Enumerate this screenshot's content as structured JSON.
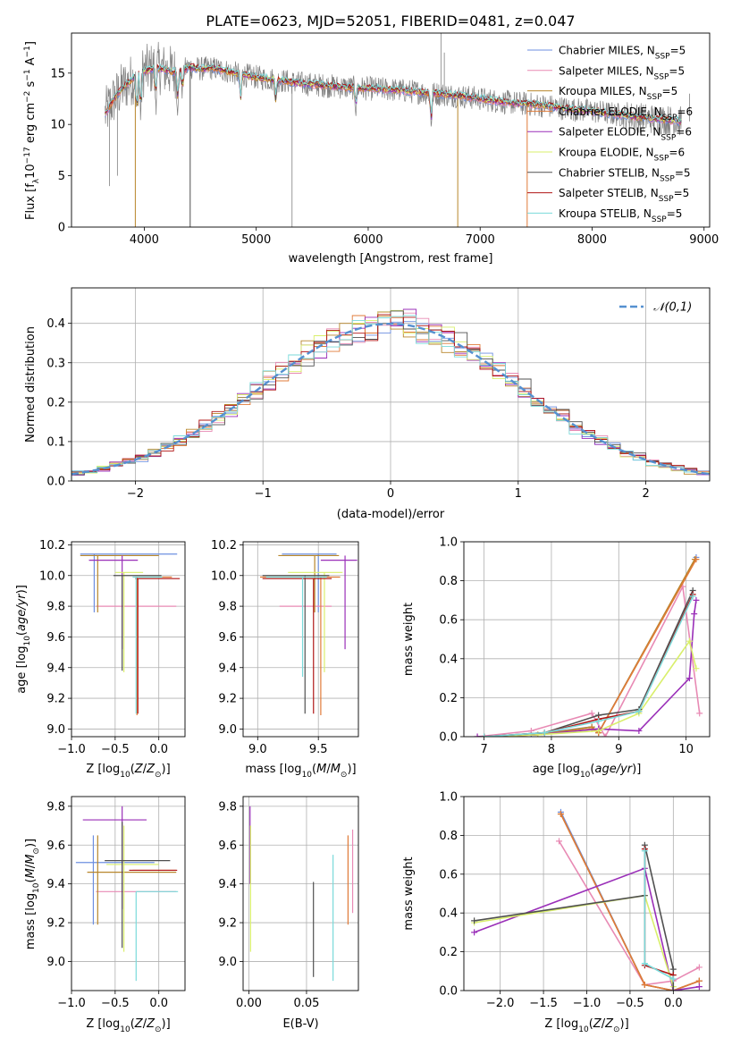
{
  "figure_title": "PLATE=0623, MJD=52051, FIBERID=0481, z=0.047",
  "colors": {
    "Chabrier MILES": "#6d8fe0",
    "Salpeter MILES": "#e88ab4",
    "Kroupa MILES": "#b8862b",
    "Chabrier ELODIE": "#e07b39",
    "Salpeter ELODIE": "#9a2fb8",
    "Kroupa ELODIE": "#d9ef6b",
    "Chabrier STELIB": "#505050",
    "Salpeter STELIB": "#b01515",
    "Kroupa STELIB": "#7adada",
    "data": "#808080",
    "normal_curve": "#5590d0",
    "grid": "#b0b0b0"
  },
  "chart_data": [
    {
      "type": "line",
      "panel": "spectrum",
      "title": "PLATE=0623, MJD=52051, FIBERID=0481, z=0.047",
      "xlabel": "wavelength [Angstrom, rest frame]",
      "ylabel": "Flux [f_λ 10^-17 erg cm^-2 s^-1 A^-1]",
      "xlim": [
        3350,
        9050
      ],
      "ylim": [
        0,
        18.9
      ],
      "xticks": [
        4000,
        5000,
        6000,
        7000,
        8000,
        9000
      ],
      "yticks": [
        0,
        5,
        10,
        15
      ],
      "grid": false,
      "legend_position": "top-right",
      "legend": [
        "Chabrier MILES, N_SSP=5",
        "Salpeter MILES, N_SSP=5",
        "Kroupa MILES, N_SSP=5",
        "Chabrier ELODIE, N_SSP=6",
        "Salpeter ELODIE, N_SSP=6",
        "Kroupa ELODIE, N_SSP=6",
        "Chabrier STELIB, N_SSP=5",
        "Salpeter STELIB, N_SSP=5",
        "Kroupa STELIB, N_SSP=5"
      ],
      "data_envelope": {
        "wavelength": [
          3650,
          3700,
          3800,
          3900,
          4000,
          4100,
          4200,
          4300,
          4400,
          4500,
          4600,
          4700,
          4800,
          4900,
          5000,
          5200,
          5400,
          5600,
          5800,
          6000,
          6200,
          6400,
          6600,
          6800,
          7000,
          7200,
          7400,
          7600,
          7800,
          8000,
          8200,
          8400,
          8600,
          8800
        ],
        "flux": [
          11.0,
          12.0,
          13.5,
          14.5,
          15.2,
          15.5,
          15.3,
          15.0,
          15.6,
          15.4,
          15.5,
          15.3,
          15.0,
          14.8,
          14.6,
          14.3,
          14.0,
          13.8,
          13.6,
          13.5,
          13.4,
          13.2,
          13.0,
          12.8,
          12.5,
          12.2,
          12.0,
          11.8,
          11.5,
          11.3,
          11.0,
          10.7,
          10.5,
          10.3
        ]
      },
      "model_drops": [
        {
          "series": "Kroupa MILES",
          "wavelength": 3920
        },
        {
          "series": "Chabrier STELIB",
          "wavelength": 4410
        },
        {
          "series": "Kroupa MILES",
          "wavelength": 6800
        },
        {
          "series": "Chabrier ELODIE",
          "wavelength": 7420
        }
      ]
    },
    {
      "type": "step",
      "panel": "residuals",
      "xlabel": "(data-model)/error",
      "ylabel": "Normed distribution",
      "xlim": [
        -2.5,
        2.5
      ],
      "ylim": [
        0,
        0.49
      ],
      "xticks": [
        -2,
        -1,
        0,
        1,
        2
      ],
      "yticks": [
        0.0,
        0.1,
        0.2,
        0.3,
        0.4
      ],
      "grid": true,
      "legend_position": "top-right",
      "legend": [
        "𝒩(0,1)"
      ],
      "bin_width": 0.1
    },
    {
      "type": "errorbar",
      "panel": "age-vs-metallicity",
      "xlabel": "Z [log10(Z/Z⊙)]",
      "ylabel": "age  [log10(age/yr)]",
      "xlim": [
        -1.0,
        0.3
      ],
      "ylim": [
        8.95,
        10.22
      ],
      "xticks": [
        -1.0,
        -0.5,
        0.0
      ],
      "yticks": [
        9.0,
        9.2,
        9.4,
        9.6,
        9.8,
        10.0,
        10.2
      ],
      "grid": true,
      "points": [
        {
          "series": "Chabrier MILES",
          "x": -0.74,
          "xerr": [
            0.16,
            0.95
          ],
          "y": 10.14,
          "yerr": [
            0.38,
            0.0
          ]
        },
        {
          "series": "Salpeter MILES",
          "x": -0.5,
          "xerr": [
            0.22,
            0.7
          ],
          "y": 9.8,
          "yerr": [
            0.0,
            0.0
          ]
        },
        {
          "series": "Kroupa MILES",
          "x": -0.7,
          "xerr": [
            0.2,
            0.7
          ],
          "y": 10.13,
          "yerr": [
            0.37,
            0.0
          ]
        },
        {
          "series": "Chabrier ELODIE",
          "x": -0.25,
          "xerr": [
            0.02,
            0.4
          ],
          "y": 9.99,
          "yerr": [
            0.9,
            0.0
          ]
        },
        {
          "series": "Salpeter ELODIE",
          "x": -0.42,
          "xerr": [
            0.38,
            0.18
          ],
          "y": 10.1,
          "yerr": [
            0.58,
            0.03
          ]
        },
        {
          "series": "Kroupa ELODIE",
          "x": -0.4,
          "xerr": [
            0.1,
            0.22
          ],
          "y": 10.02,
          "yerr": [
            0.65,
            0.0
          ]
        },
        {
          "series": "Chabrier STELIB",
          "x": -0.42,
          "xerr": [
            0.1,
            0.45
          ],
          "y": 10.0,
          "yerr": [
            0.62,
            0.0
          ]
        },
        {
          "series": "Salpeter STELIB",
          "x": -0.24,
          "xerr": [
            0.03,
            0.48
          ],
          "y": 9.98,
          "yerr": [
            0.88,
            0.0
          ]
        },
        {
          "series": "Kroupa STELIB",
          "x": -0.26,
          "xerr": [
            0.04,
            0.3
          ],
          "y": 9.99,
          "yerr": [
            0.89,
            0.0
          ]
        }
      ]
    },
    {
      "type": "errorbar",
      "panel": "age-vs-mass",
      "xlabel": "mass [log10(M/M⊙)]",
      "ylabel": "",
      "xlim": [
        8.88,
        9.83
      ],
      "ylim": [
        8.95,
        10.22
      ],
      "xticks": [
        9.0,
        9.5
      ],
      "yticks": [
        9.0,
        9.2,
        9.4,
        9.6,
        9.8,
        10.0,
        10.2
      ],
      "grid": true,
      "points": [
        {
          "series": "Chabrier MILES",
          "x": 9.5,
          "xerr": [
            0.3,
            0.15
          ],
          "y": 10.14,
          "yerr": [
            0.38,
            0.0
          ]
        },
        {
          "series": "Salpeter MILES",
          "x": 9.36,
          "xerr": [
            0.18,
            0.25
          ],
          "y": 9.8,
          "yerr": [
            0.0,
            0.0
          ]
        },
        {
          "series": "Kroupa MILES",
          "x": 9.47,
          "xerr": [
            0.3,
            0.2
          ],
          "y": 10.13,
          "yerr": [
            0.37,
            0.0
          ]
        },
        {
          "series": "Chabrier ELODIE",
          "x": 9.52,
          "xerr": [
            0.5,
            0.16
          ],
          "y": 9.99,
          "yerr": [
            0.9,
            0.0
          ]
        },
        {
          "series": "Salpeter ELODIE",
          "x": 9.72,
          "xerr": [
            0.2,
            0.1
          ],
          "y": 10.1,
          "yerr": [
            0.58,
            0.03
          ]
        },
        {
          "series": "Kroupa ELODIE",
          "x": 9.55,
          "xerr": [
            0.3,
            0.15
          ],
          "y": 10.02,
          "yerr": [
            0.65,
            0.0
          ]
        },
        {
          "series": "Chabrier STELIB",
          "x": 9.39,
          "xerr": [
            0.35,
            0.2
          ],
          "y": 10.0,
          "yerr": [
            0.9,
            0.0
          ]
        },
        {
          "series": "Salpeter STELIB",
          "x": 9.46,
          "xerr": [
            0.42,
            0.15
          ],
          "y": 9.98,
          "yerr": [
            0.88,
            0.0
          ]
        },
        {
          "series": "Kroupa STELIB",
          "x": 9.37,
          "xerr": [
            0.3,
            0.2
          ],
          "y": 9.99,
          "yerr": [
            0.65,
            0.0
          ]
        }
      ]
    },
    {
      "type": "line",
      "panel": "mass-weight-vs-age",
      "xlabel": "age  [log10(age/yr)]",
      "ylabel": "mass weight",
      "xlim": [
        6.7,
        10.35
      ],
      "ylim": [
        0,
        1.0
      ],
      "xticks": [
        7,
        8,
        9,
        10
      ],
      "yticks": [
        0.0,
        0.2,
        0.4,
        0.6,
        0.8,
        1.0
      ],
      "grid": true,
      "series": [
        {
          "name": "Chabrier MILES",
          "x": [
            7.0,
            7.7,
            8.6,
            8.7,
            10.15
          ],
          "y": [
            0.0,
            0.01,
            0.05,
            0.02,
            0.92
          ]
        },
        {
          "name": "Salpeter MILES",
          "x": [
            6.9,
            7.7,
            8.6,
            8.8,
            9.95,
            10.2
          ],
          "y": [
            0.0,
            0.03,
            0.12,
            0.0,
            0.77,
            0.12
          ]
        },
        {
          "name": "Kroupa MILES",
          "x": [
            7.0,
            7.8,
            8.6,
            8.7,
            10.13
          ],
          "y": [
            0.0,
            0.01,
            0.05,
            0.02,
            0.91
          ]
        },
        {
          "name": "Chabrier ELODIE",
          "x": [
            7.0,
            7.8,
            8.6,
            8.7,
            10.15
          ],
          "y": [
            0.0,
            0.01,
            0.04,
            0.02,
            0.91
          ]
        },
        {
          "name": "Salpeter ELODIE",
          "x": [
            6.9,
            7.8,
            8.7,
            9.3,
            10.05,
            10.12,
            10.15
          ],
          "y": [
            0.0,
            0.01,
            0.04,
            0.03,
            0.3,
            0.63,
            0.7
          ]
        },
        {
          "name": "Kroupa ELODIE",
          "x": [
            7.0,
            7.8,
            8.7,
            9.3,
            10.05,
            10.15
          ],
          "y": [
            0.0,
            0.01,
            0.03,
            0.12,
            0.49,
            0.35
          ]
        },
        {
          "name": "Chabrier STELIB",
          "x": [
            7.0,
            7.9,
            8.7,
            9.3,
            10.1
          ],
          "y": [
            0.0,
            0.02,
            0.11,
            0.14,
            0.75
          ]
        },
        {
          "name": "Salpeter STELIB",
          "x": [
            7.0,
            7.9,
            8.7,
            9.3,
            10.1
          ],
          "y": [
            0.0,
            0.02,
            0.09,
            0.13,
            0.73
          ]
        },
        {
          "name": "Kroupa STELIB",
          "x": [
            7.0,
            7.9,
            8.7,
            9.3,
            10.1
          ],
          "y": [
            0.0,
            0.02,
            0.08,
            0.13,
            0.72
          ]
        }
      ]
    },
    {
      "type": "errorbar",
      "panel": "mass-vs-metallicity",
      "xlabel": "Z [log10(Z/Z⊙)]",
      "ylabel": "mass [log10(M/M⊙)]",
      "xlim": [
        -1.0,
        0.3
      ],
      "ylim": [
        8.85,
        9.85
      ],
      "xticks": [
        -1.0,
        -0.5,
        0.0
      ],
      "yticks": [
        9.0,
        9.2,
        9.4,
        9.6,
        9.8
      ],
      "grid": true,
      "points": [
        {
          "series": "Chabrier MILES",
          "x": -0.75,
          "xerr": [
            0.2,
            0.7
          ],
          "y": 9.51,
          "yerr": [
            0.32,
            0.14
          ]
        },
        {
          "series": "Salpeter MILES",
          "x": -0.5,
          "xerr": [
            0.22,
            0.7
          ],
          "y": 9.36,
          "yerr": [
            0.0,
            0.0
          ]
        },
        {
          "series": "Kroupa MILES",
          "x": -0.7,
          "xerr": [
            0.12,
            0.9
          ],
          "y": 9.46,
          "yerr": [
            0.27,
            0.19
          ]
        },
        {
          "series": "Chabrier ELODIE",
          "x": -0.25,
          "xerr": [
            0.05,
            0.45
          ],
          "y": 9.47,
          "yerr": [
            0.0,
            0.0
          ]
        },
        {
          "series": "Salpeter ELODIE",
          "x": -0.42,
          "xerr": [
            0.45,
            0.28
          ],
          "y": 9.73,
          "yerr": [
            0.46,
            0.07
          ]
        },
        {
          "series": "Kroupa ELODIE",
          "x": -0.4,
          "xerr": [
            0.2,
            0.4
          ],
          "y": 9.5,
          "yerr": [
            0.45,
            0.2
          ]
        },
        {
          "series": "Chabrier STELIB",
          "x": -0.42,
          "xerr": [
            0.2,
            0.55
          ],
          "y": 9.52,
          "yerr": [
            0.45,
            0.2
          ]
        },
        {
          "series": "Salpeter STELIB",
          "x": -0.24,
          "xerr": [
            0.1,
            0.45
          ],
          "y": 9.47,
          "yerr": [
            0.0,
            0.0
          ]
        },
        {
          "series": "Kroupa STELIB",
          "x": -0.26,
          "xerr": [
            0.0,
            0.48
          ],
          "y": 9.36,
          "yerr": [
            0.46,
            0.0
          ]
        }
      ]
    },
    {
      "type": "errorbar",
      "panel": "mass-vs-extinction",
      "xlabel": "E(B-V)",
      "ylabel": "",
      "xlim": [
        -0.005,
        0.095
      ],
      "ylim": [
        8.85,
        9.85
      ],
      "xticks": [
        0.0,
        0.05
      ],
      "xticklabels": [
        "0.00",
        "0.05"
      ],
      "yticks": [
        9.0,
        9.2,
        9.4,
        9.6,
        9.8
      ],
      "grid": true,
      "points": [
        {
          "series": "Salpeter ELODIE",
          "x": 0.001,
          "y": 9.65,
          "yerr": [
            0.25,
            0.15
          ]
        },
        {
          "series": "Kroupa ELODIE",
          "x": 0.0015,
          "y": 9.45,
          "yerr": [
            0.4,
            0.25
          ]
        },
        {
          "series": "Chabrier STELIB",
          "x": 0.056,
          "y": 9.16,
          "yerr": [
            0.24,
            0.25
          ]
        },
        {
          "series": "Kroupa STELIB",
          "x": 0.073,
          "y": 9.22,
          "yerr": [
            0.32,
            0.33
          ]
        },
        {
          "series": "Chabrier ELODIE",
          "x": 0.086,
          "y": 9.42,
          "yerr": [
            0.23,
            0.23
          ]
        },
        {
          "series": "Salpeter MILES",
          "x": 0.09,
          "y": 9.47,
          "yerr": [
            0.22,
            0.21
          ]
        }
      ]
    },
    {
      "type": "line",
      "panel": "mass-weight-vs-metallicity",
      "xlabel": "Z [log10(Z/Z⊙)]",
      "ylabel": "mass weight",
      "xlim": [
        -2.42,
        0.42
      ],
      "ylim": [
        0,
        1.0
      ],
      "xticks": [
        -2.0,
        -1.5,
        -1.0,
        -0.5,
        0.0
      ],
      "yticks": [
        0.0,
        0.2,
        0.4,
        0.6,
        0.8,
        1.0
      ],
      "grid": true,
      "series": [
        {
          "name": "Chabrier MILES",
          "x": [
            -1.3,
            -0.33,
            0.0,
            0.3
          ],
          "y": [
            0.92,
            0.03,
            0.0,
            0.05
          ]
        },
        {
          "name": "Salpeter MILES",
          "x": [
            -1.32,
            -0.33,
            0.0,
            0.3
          ],
          "y": [
            0.77,
            0.03,
            0.05,
            0.12
          ]
        },
        {
          "name": "Kroupa MILES",
          "x": [
            -1.3,
            -0.33,
            0.0,
            0.3
          ],
          "y": [
            0.91,
            0.03,
            0.0,
            0.05
          ]
        },
        {
          "name": "Chabrier ELODIE",
          "x": [
            -1.3,
            -0.33,
            0.0,
            0.3
          ],
          "y": [
            0.91,
            0.03,
            0.0,
            0.05
          ]
        },
        {
          "name": "Salpeter ELODIE",
          "x": [
            -2.3,
            -0.33,
            0.0,
            0.3
          ],
          "y": [
            0.3,
            0.63,
            0.0,
            0.02
          ]
        },
        {
          "name": "Kroupa ELODIE",
          "x": [
            -2.3,
            -0.33,
            0.0
          ],
          "y": [
            0.35,
            0.49,
            0.02
          ]
        },
        {
          "name": "Chabrier STELIB",
          "x": [
            -2.3,
            -0.33,
            -0.33,
            0.0,
            0.0
          ],
          "y": [
            0.36,
            0.49,
            0.75,
            0.11,
            0.0
          ]
        },
        {
          "name": "Salpeter STELIB",
          "x": [
            -0.33,
            -0.33,
            0.0
          ],
          "y": [
            0.73,
            0.13,
            0.08
          ]
        },
        {
          "name": "Kroupa STELIB",
          "x": [
            -0.33,
            -0.33,
            0.0
          ],
          "y": [
            0.72,
            0.14,
            0.06
          ]
        }
      ]
    }
  ],
  "labels": {
    "spectrum_ylabel": "Flux [f",
    "spectrum_xlabel": "wavelength [Angstrom, rest frame]",
    "resid_xlabel": "(data-model)/error",
    "resid_ylabel": "Normed distribution",
    "resid_legend": "𝒩(0,1)",
    "age_ylabel": "age  [log",
    "mass_ylabel": "mass [log",
    "weight_ylabel": "mass weight",
    "z_xlabel": "Z [log",
    "mass_xlabel": "mass [log",
    "ebv_xlabel": "E(B-V)",
    "age_xlabel": "age  [log"
  }
}
